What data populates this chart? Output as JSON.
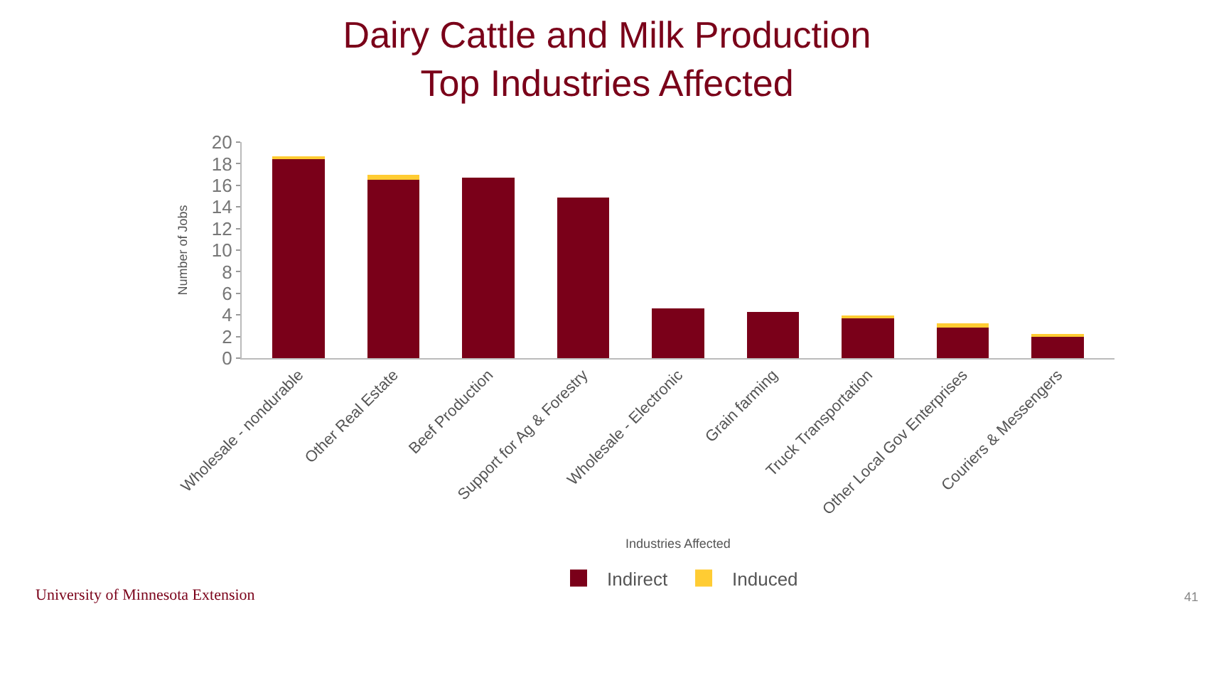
{
  "chart_data": {
    "type": "bar",
    "title": "Dairy Cattle and Milk Production\nTop Industries Affected",
    "xlabel": "Industries Affected",
    "ylabel": "Number of Jobs",
    "categories": [
      "Wholesale - nondurable",
      "Other Real Estate",
      "Beef Production",
      "Support for Ag & Forestry",
      "Wholesale - Electronic",
      "Grain farming",
      "Truck Transportation",
      "Other Local Gov Enterprises",
      "Couriers & Messengers"
    ],
    "stacked": true,
    "series": [
      {
        "name": "Indirect",
        "color": "#7a0019",
        "values": [
          18.5,
          16.5,
          16.7,
          14.9,
          4.6,
          4.3,
          3.7,
          2.8,
          2.1
        ]
      },
      {
        "name": "Induced",
        "color": "#ffcc33",
        "values": [
          0.1,
          0.5,
          0.0,
          0.0,
          0.0,
          0.0,
          0.2,
          0.4,
          0.1
        ]
      }
    ],
    "ylim": [
      0,
      20
    ],
    "yticks": [
      0,
      2,
      4,
      6,
      8,
      10,
      12,
      14,
      16,
      18,
      20
    ],
    "legend": "bottom",
    "annotations": [
      "University of Minnesota Extension",
      "41"
    ]
  }
}
